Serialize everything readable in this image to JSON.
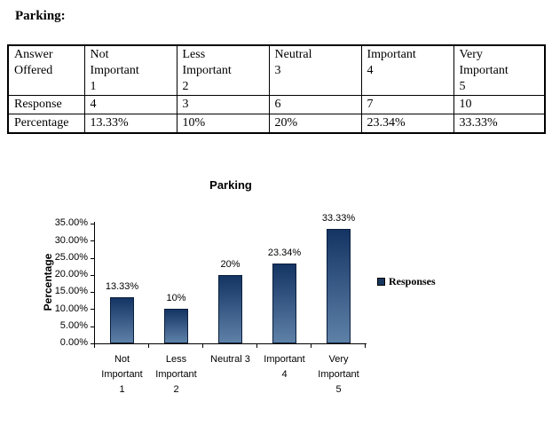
{
  "page": {
    "title": "Parking:"
  },
  "table": {
    "header": [
      "Answer\nOffered",
      "Not\nImportant\n1",
      "Less\nImportant\n2",
      "Neutral\n3",
      "Important\n4",
      "Very\nImportant\n5"
    ],
    "rows": [
      {
        "label": "Response",
        "values": [
          "4",
          "3",
          "6",
          "7",
          "10"
        ]
      },
      {
        "label": "Percentage",
        "values": [
          "13.33%",
          "10%",
          "20%",
          "23.34%",
          "33.33%"
        ]
      }
    ]
  },
  "chart": {
    "title": "Parking",
    "y_axis_label": "Percentage",
    "y_ticks": [
      "35.00%",
      "30.00%",
      "25.00%",
      "20.00%",
      "15.00%",
      "10.00%",
      "5.00%",
      "0.00%"
    ],
    "categories": [
      "Not\nImportant\n1",
      "Less\nImportant\n2",
      "Neutral 3",
      "Important\n4",
      "Very\nImportant\n5"
    ],
    "data_labels": [
      "13.33%",
      "10%",
      "20%",
      "23.34%",
      "33.33%"
    ],
    "legend": {
      "label": "Responses"
    },
    "colors": {
      "bar_gradient_top": "#143463",
      "bar_gradient_bottom": "#5e81a8",
      "bar_border": "#0a1f3d",
      "legend_swatch": "#17375e",
      "text": "#000000",
      "background": "#ffffff"
    }
  },
  "chart_data": {
    "type": "bar",
    "title": "Parking",
    "categories": [
      "Not Important 1",
      "Less Important 2",
      "Neutral 3",
      "Important 4",
      "Very Important 5"
    ],
    "series": [
      {
        "name": "Responses",
        "values": [
          13.33,
          10,
          20,
          23.34,
          33.33
        ]
      }
    ],
    "response_counts": [
      4,
      3,
      6,
      7,
      10
    ],
    "xlabel": "",
    "ylabel": "Percentage",
    "ylim": [
      0,
      35
    ],
    "y_tick_step": 5,
    "value_label_format": "percent",
    "legend_position": "right",
    "grid": false
  }
}
